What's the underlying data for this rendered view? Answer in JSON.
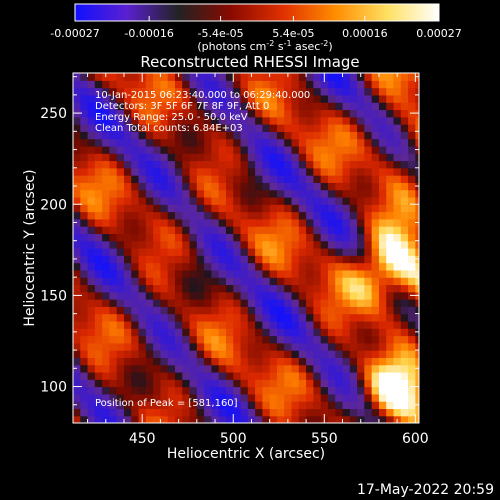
{
  "colorbar": {
    "tick_labels": [
      "-0.00027",
      "-0.00016",
      "-5.4e-05",
      "5.4e-05",
      "0.00016",
      "0.00027"
    ],
    "tick_values": [
      -0.00027,
      -0.00016,
      -5.4e-05,
      5.4e-05,
      0.00016,
      0.00027
    ],
    "range": [
      -0.00027,
      0.00027
    ],
    "units_prefix": "(photons cm",
    "units_exp1": "-2",
    "units_mid": " s",
    "units_exp2": "-1",
    "units_mid2": " asec",
    "units_exp3": "-2",
    "units_suffix": ")",
    "colors": [
      "#1010ff",
      "#5a20d0",
      "#222222",
      "#8a0a00",
      "#e03000",
      "#ff8c00",
      "#ffe060",
      "#ffffff"
    ]
  },
  "chart_data": {
    "type": "heatmap",
    "title": "Reconstructed RHESSI Image",
    "xlabel": "Heliocentric X (arcsec)",
    "ylabel": "Heliocentric Y (arcsec)",
    "xlim": [
      412,
      602
    ],
    "ylim": [
      80,
      272
    ],
    "x_ticks": [
      450,
      500,
      550,
      600
    ],
    "y_ticks": [
      100,
      150,
      200,
      250
    ],
    "peak": [
      581,
      160
    ],
    "info_lines": [
      "10-Jan-2015 06:23:40.000 to 06:29:40.000",
      "Detectors: 3F 5F 6F 7F 8F 9F, Att 0",
      "Energy Range: 25.0 - 50.0 keV",
      "Clean     Total counts: 6.84E+03"
    ],
    "peak_label": "Position of Peak = [581,160]"
  },
  "footer_date": "17-May-2022 20:59"
}
